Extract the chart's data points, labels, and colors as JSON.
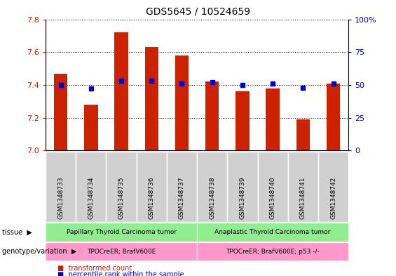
{
  "title": "GDS5645 / 10524659",
  "samples": [
    "GSM1348733",
    "GSM1348734",
    "GSM1348735",
    "GSM1348736",
    "GSM1348737",
    "GSM1348738",
    "GSM1348739",
    "GSM1348740",
    "GSM1348741",
    "GSM1348742"
  ],
  "transformed_count": [
    7.47,
    7.28,
    7.72,
    7.63,
    7.58,
    7.42,
    7.36,
    7.38,
    7.19,
    7.41
  ],
  "percentile_rank": [
    50,
    47,
    53,
    53,
    51,
    52,
    50,
    51,
    48,
    51
  ],
  "ylim_left": [
    7.0,
    7.8
  ],
  "ylim_right": [
    0,
    100
  ],
  "yticks_left": [
    7.0,
    7.2,
    7.4,
    7.6,
    7.8
  ],
  "yticks_right": [
    0,
    25,
    50,
    75,
    100
  ],
  "bar_color": "#cc2200",
  "dot_color": "#0000cc",
  "bar_width": 0.45,
  "tissue_label_1": "Papillary Thyroid Carcinoma tumor",
  "tissue_label_2": "Anaplastic Thyroid Carcinoma tumor",
  "geno_label_1": "TPOCreER; BrafV600E",
  "geno_label_2": "TPOCreER; BrafV600E; p53 -/-",
  "tissue_color": "#90ee90",
  "geno_color": "#ff99cc",
  "sample_box_color": "#d0d0d0",
  "left_tick_color": "#cc2200",
  "right_tick_color": "#0000cc",
  "legend_bar_color": "#cc2200",
  "legend_dot_color": "#0000cc",
  "legend_bar_label": "transformed count",
  "legend_dot_label": "percentile rank within the sample"
}
